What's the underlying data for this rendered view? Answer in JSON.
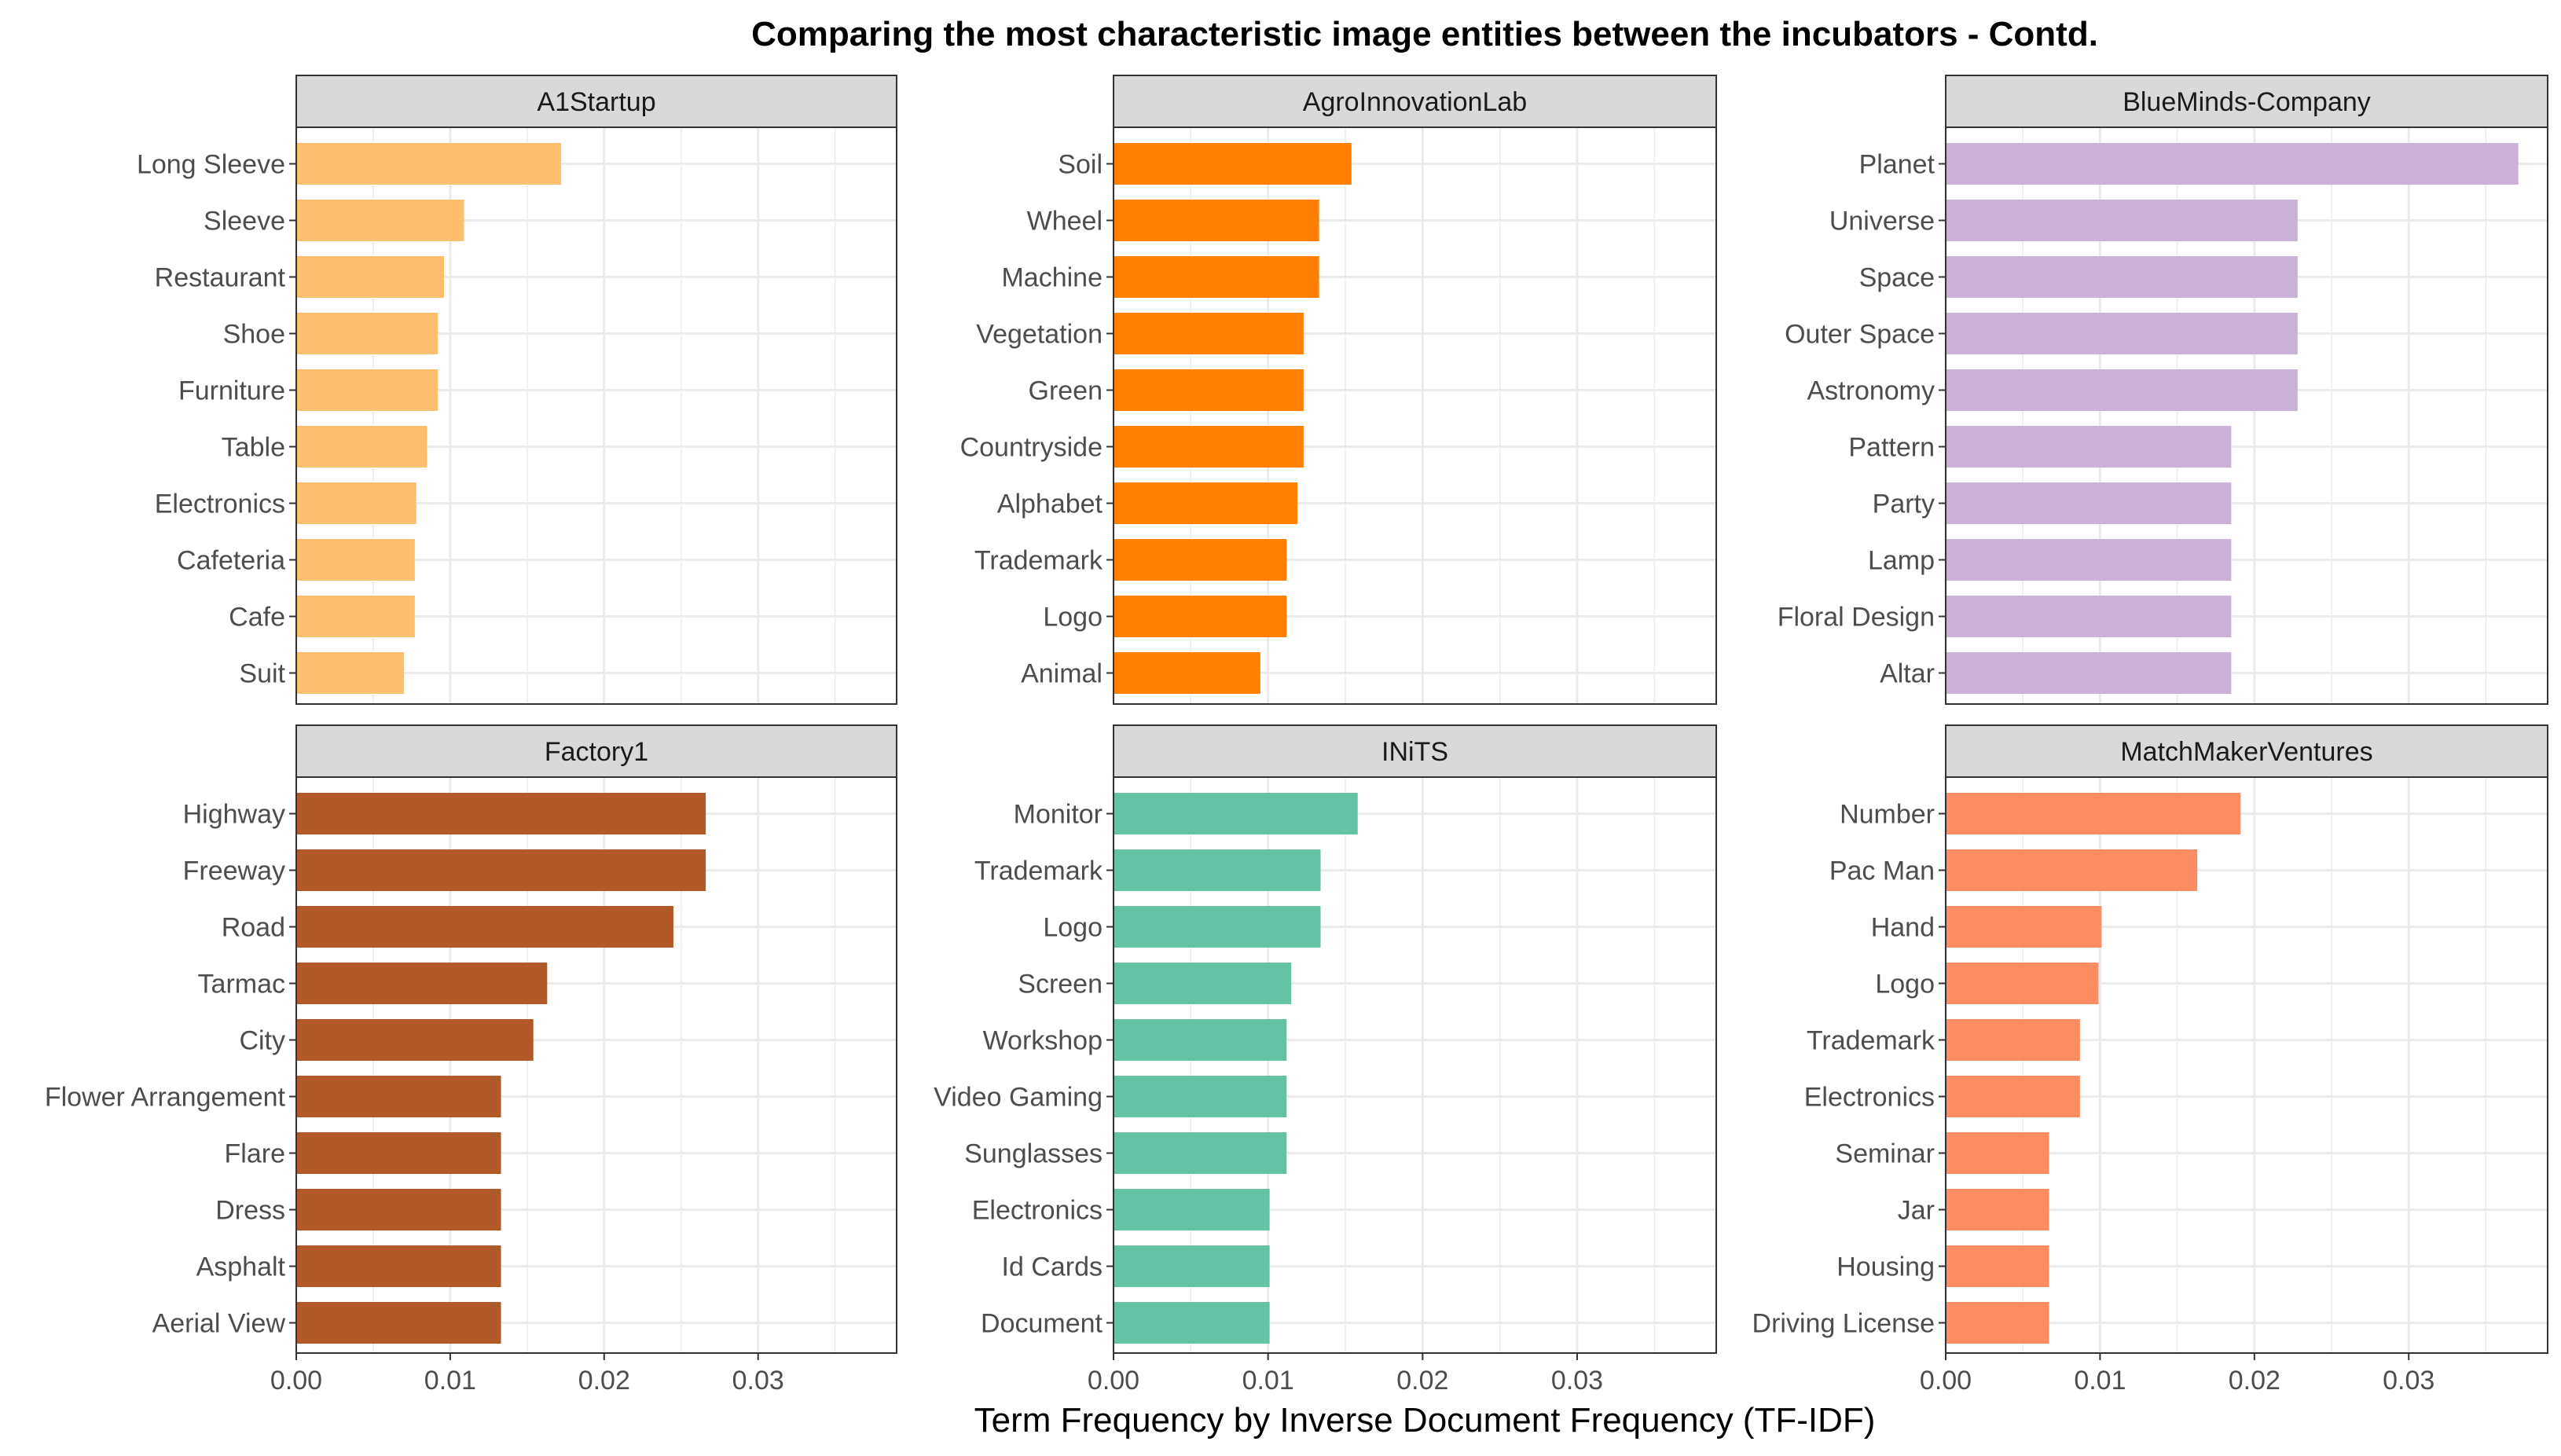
{
  "colors": {
    "A1Startup": "#FDBF6F",
    "AgroInnovationLab": "#FF7F00",
    "BlueMinds-Company": "#CAB2D6",
    "Factory1": "#B15928",
    "INiTS": "#66C2A5",
    "MatchMakerVentures": "#FC8D62",
    "strip_bg": "#D9D9D9",
    "grid": "#EBEBEB",
    "panel_border": "#333333"
  },
  "chart_data": {
    "type": "bar",
    "orientation": "horizontal",
    "title": "Comparing the most characteristic image entities between the incubators - Contd.",
    "xlabel": "Term Frequency by Inverse Document Frequency (TF-IDF)",
    "ylabel": "",
    "xlim": [
      0,
      0.039
    ],
    "xticks": [
      0,
      0.01,
      0.02,
      0.03
    ],
    "xtick_labels": [
      "0.00",
      "0.01",
      "0.02",
      "0.03"
    ],
    "grid": true,
    "legend": "none",
    "facets": [
      {
        "name": "A1Startup",
        "categories": [
          "Long Sleeve",
          "Sleeve",
          "Restaurant",
          "Shoe",
          "Furniture",
          "Table",
          "Electronics",
          "Cafeteria",
          "Cafe",
          "Suit"
        ],
        "values": [
          0.0172,
          0.0109,
          0.0096,
          0.0092,
          0.0092,
          0.0085,
          0.0078,
          0.0077,
          0.0077,
          0.007
        ]
      },
      {
        "name": "AgroInnovationLab",
        "categories": [
          "Soil",
          "Wheel",
          "Machine",
          "Vegetation",
          "Green",
          "Countryside",
          "Alphabet",
          "Trademark",
          "Logo",
          "Animal"
        ],
        "values": [
          0.0154,
          0.0133,
          0.0133,
          0.0123,
          0.0123,
          0.0123,
          0.0119,
          0.0112,
          0.0112,
          0.0095
        ]
      },
      {
        "name": "BlueMinds-Company",
        "categories": [
          "Planet",
          "Universe",
          "Space",
          "Outer Space",
          "Astronomy",
          "Pattern",
          "Party",
          "Lamp",
          "Floral Design",
          "Altar"
        ],
        "values": [
          0.0371,
          0.0228,
          0.0228,
          0.0228,
          0.0228,
          0.0185,
          0.0185,
          0.0185,
          0.0185,
          0.0185
        ]
      },
      {
        "name": "Factory1",
        "categories": [
          "Highway",
          "Freeway",
          "Road",
          "Tarmac",
          "City",
          "Flower Arrangement",
          "Flare",
          "Dress",
          "Asphalt",
          "Aerial View"
        ],
        "values": [
          0.0266,
          0.0266,
          0.0245,
          0.0163,
          0.0154,
          0.0133,
          0.0133,
          0.0133,
          0.0133,
          0.0133
        ]
      },
      {
        "name": "INiTS",
        "categories": [
          "Monitor",
          "Trademark",
          "Logo",
          "Screen",
          "Workshop",
          "Video Gaming",
          "Sunglasses",
          "Electronics",
          "Id Cards",
          "Document"
        ],
        "values": [
          0.0158,
          0.0134,
          0.0134,
          0.0115,
          0.0112,
          0.0112,
          0.0112,
          0.0101,
          0.0101,
          0.0101
        ]
      },
      {
        "name": "MatchMakerVentures",
        "categories": [
          "Number",
          "Pac Man",
          "Hand",
          "Logo",
          "Trademark",
          "Electronics",
          "Seminar",
          "Jar",
          "Housing",
          "Driving License"
        ],
        "values": [
          0.0191,
          0.0163,
          0.0101,
          0.0099,
          0.0087,
          0.0087,
          0.0067,
          0.0067,
          0.0067,
          0.0067
        ]
      }
    ]
  }
}
